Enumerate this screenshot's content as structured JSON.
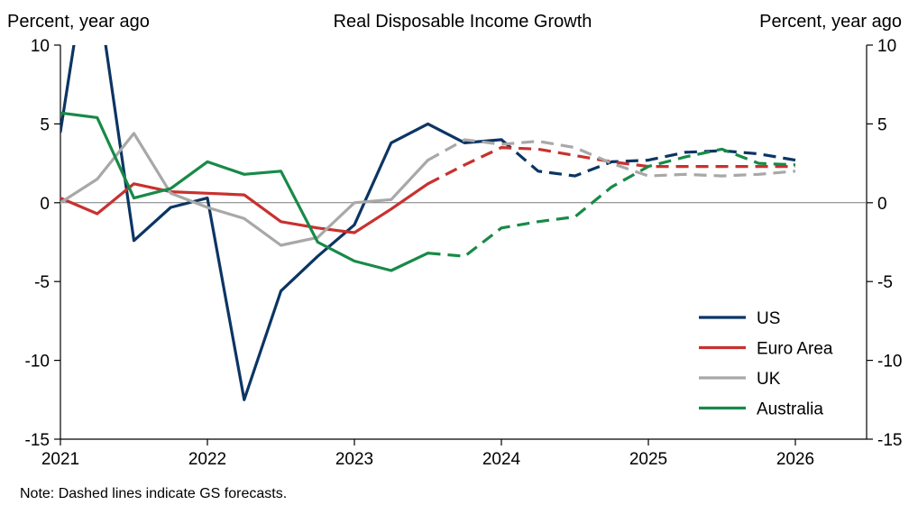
{
  "chart_data": {
    "type": "line",
    "title": "Real Disposable Income Growth",
    "ylabel_left": "Percent, year ago",
    "ylabel_right": "Percent, year ago",
    "ylim": [
      -15,
      10
    ],
    "yticks": [
      -15,
      -10,
      -5,
      0,
      5,
      10
    ],
    "xlim": [
      2021,
      2026.55
    ],
    "xticks": [
      2021,
      2022,
      2023,
      2024,
      2025,
      2026
    ],
    "grid": false,
    "zero_line": true,
    "legend_position": "bottom-right",
    "forecast_note": "Note: Dashed lines indicate GS forecasts.",
    "series": [
      {
        "name": "US",
        "color": "#0b3563",
        "actual": [
          [
            2021,
            4.5
          ],
          [
            2021.1,
            10.5
          ],
          [
            2021.3,
            10.5
          ],
          [
            2021.5,
            -2.4
          ],
          [
            2021.75,
            -0.3
          ],
          [
            2022,
            0.3
          ],
          [
            2022.25,
            -12.5
          ],
          [
            2022.5,
            -5.6
          ],
          [
            2022.75,
            -3.4
          ],
          [
            2023,
            -1.4
          ],
          [
            2023.25,
            3.8
          ],
          [
            2023.5,
            5.0
          ],
          [
            2023.75,
            3.8
          ],
          [
            2024,
            4.0
          ]
        ],
        "forecast": [
          [
            2024,
            4.0
          ],
          [
            2024.25,
            2.0
          ],
          [
            2024.5,
            1.7
          ],
          [
            2024.75,
            2.6
          ],
          [
            2025,
            2.7
          ],
          [
            2025.25,
            3.2
          ],
          [
            2025.5,
            3.3
          ],
          [
            2025.75,
            3.1
          ],
          [
            2026,
            2.7
          ]
        ]
      },
      {
        "name": "Euro Area",
        "color": "#c8312f",
        "actual": [
          [
            2021,
            0.3
          ],
          [
            2021.25,
            -0.7
          ],
          [
            2021.5,
            1.2
          ],
          [
            2021.75,
            0.7
          ],
          [
            2022,
            0.6
          ],
          [
            2022.25,
            0.5
          ],
          [
            2022.5,
            -1.2
          ],
          [
            2022.75,
            -1.6
          ],
          [
            2023,
            -1.9
          ],
          [
            2023.25,
            -0.4
          ],
          [
            2023.5,
            1.2
          ]
        ],
        "forecast": [
          [
            2023.5,
            1.2
          ],
          [
            2023.75,
            2.4
          ],
          [
            2024,
            3.5
          ],
          [
            2024.25,
            3.4
          ],
          [
            2024.5,
            3.0
          ],
          [
            2024.75,
            2.6
          ],
          [
            2025,
            2.3
          ],
          [
            2025.25,
            2.3
          ],
          [
            2025.5,
            2.3
          ],
          [
            2025.75,
            2.3
          ],
          [
            2026,
            2.3
          ]
        ]
      },
      {
        "name": "UK",
        "color": "#a8a8a8",
        "actual": [
          [
            2021,
            0.0
          ],
          [
            2021.25,
            1.5
          ],
          [
            2021.5,
            4.4
          ],
          [
            2021.75,
            0.6
          ],
          [
            2022,
            -0.3
          ],
          [
            2022.25,
            -1.0
          ],
          [
            2022.5,
            -2.7
          ],
          [
            2022.75,
            -2.2
          ],
          [
            2023,
            0.0
          ],
          [
            2023.25,
            0.2
          ],
          [
            2023.5,
            2.7
          ]
        ],
        "forecast": [
          [
            2023.5,
            2.7
          ],
          [
            2023.75,
            4.0
          ],
          [
            2024,
            3.7
          ],
          [
            2024.25,
            3.9
          ],
          [
            2024.5,
            3.5
          ],
          [
            2024.75,
            2.5
          ],
          [
            2025,
            1.7
          ],
          [
            2025.25,
            1.8
          ],
          [
            2025.5,
            1.7
          ],
          [
            2025.75,
            1.8
          ],
          [
            2026,
            2.0
          ]
        ]
      },
      {
        "name": "Australia",
        "color": "#178a48",
        "actual": [
          [
            2021,
            5.7
          ],
          [
            2021.25,
            5.4
          ],
          [
            2021.5,
            0.3
          ],
          [
            2021.75,
            0.9
          ],
          [
            2022,
            2.6
          ],
          [
            2022.25,
            1.8
          ],
          [
            2022.5,
            2.0
          ],
          [
            2022.75,
            -2.5
          ],
          [
            2023,
            -3.7
          ],
          [
            2023.25,
            -4.3
          ],
          [
            2023.5,
            -3.2
          ]
        ],
        "forecast": [
          [
            2023.5,
            -3.2
          ],
          [
            2023.75,
            -3.4
          ],
          [
            2024,
            -1.6
          ],
          [
            2024.25,
            -1.2
          ],
          [
            2024.5,
            -0.9
          ],
          [
            2024.75,
            1.0
          ],
          [
            2025,
            2.3
          ],
          [
            2025.25,
            2.9
          ],
          [
            2025.5,
            3.4
          ],
          [
            2025.75,
            2.5
          ],
          [
            2026,
            2.4
          ]
        ]
      }
    ]
  }
}
